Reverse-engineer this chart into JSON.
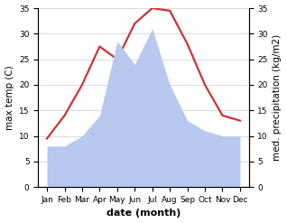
{
  "months": [
    "Jan",
    "Feb",
    "Mar",
    "Apr",
    "May",
    "Jun",
    "Jul",
    "Aug",
    "Sep",
    "Oct",
    "Nov",
    "Dec"
  ],
  "month_indices": [
    1,
    2,
    3,
    4,
    5,
    6,
    7,
    8,
    9,
    10,
    11,
    12
  ],
  "temperature": [
    9.5,
    14.0,
    20.0,
    27.5,
    25.0,
    32.0,
    35.0,
    34.5,
    28.0,
    20.0,
    14.0,
    13.0
  ],
  "precipitation": [
    8.0,
    8.0,
    10.0,
    14.0,
    28.5,
    24.0,
    31.0,
    20.0,
    13.0,
    11.0,
    10.0,
    10.0
  ],
  "temp_color": "#cc3333",
  "precip_color": "#b8c8ee",
  "ylim_left": [
    0,
    35
  ],
  "ylim_right": [
    0,
    35
  ],
  "yticks_left": [
    0,
    5,
    10,
    15,
    20,
    25,
    30,
    35
  ],
  "yticks_right": [
    0,
    5,
    10,
    15,
    20,
    25,
    30,
    35
  ],
  "xlabel": "date (month)",
  "ylabel_left": "max temp (C)",
  "ylabel_right": "med. precipitation (kg/m2)",
  "bg_color": "#ffffff",
  "grid_color": "#cccccc",
  "temp_linewidth": 1.6,
  "label_fontsize": 7.5,
  "tick_fontsize": 6.5,
  "xlabel_fontsize": 8,
  "xlabel_fontweight": "bold"
}
